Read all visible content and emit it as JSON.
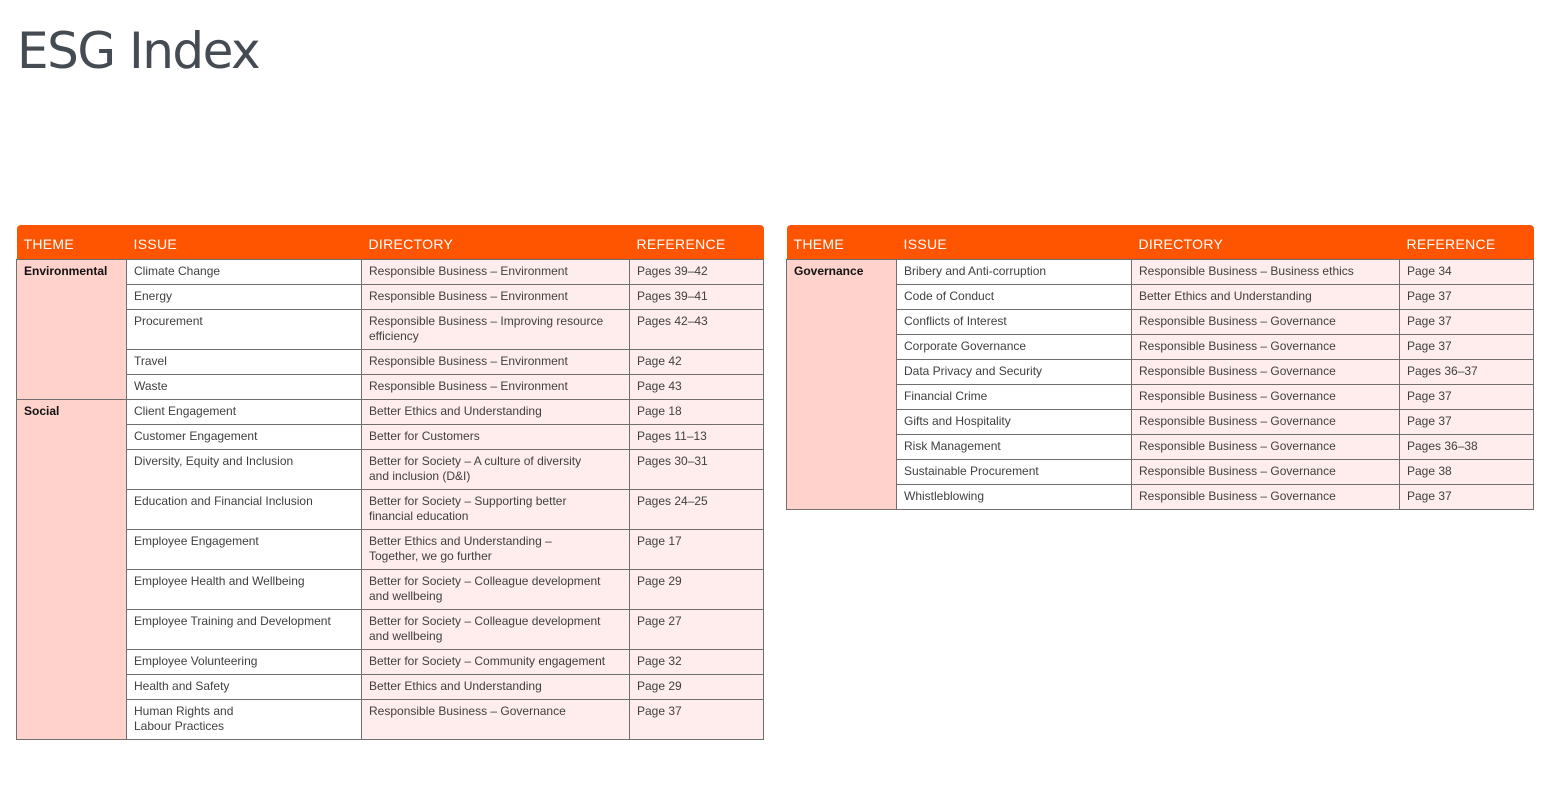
{
  "page": {
    "title": "ESG Index"
  },
  "headers": {
    "theme": "THEME",
    "issue": "ISSUE",
    "directory": "DIRECTORY",
    "reference": "REFERENCE"
  },
  "left_table": {
    "groups": [
      {
        "theme": "Environmental",
        "rows": [
          {
            "issue": "Climate Change",
            "directory": "Responsible Business – Environment",
            "reference": "Pages 39–42"
          },
          {
            "issue": "Energy",
            "directory": "Responsible Business – Environment",
            "reference": "Pages 39–41"
          },
          {
            "issue": "Procurement",
            "directory": "Responsible Business – Improving resource\nefficiency",
            "reference": "Pages 42–43"
          },
          {
            "issue": "Travel",
            "directory": "Responsible Business – Environment",
            "reference": "Page 42"
          },
          {
            "issue": "Waste",
            "directory": "Responsible Business – Environment",
            "reference": "Page 43"
          }
        ]
      },
      {
        "theme": "Social",
        "rows": [
          {
            "issue": "Client Engagement",
            "directory": "Better Ethics and Understanding",
            "reference": "Page 18"
          },
          {
            "issue": "Customer Engagement",
            "directory": "Better for Customers",
            "reference": "Pages 11–13"
          },
          {
            "issue": "Diversity, Equity and Inclusion",
            "directory": "Better for Society – A culture of diversity\nand inclusion (D&I)",
            "reference": "Pages 30–31"
          },
          {
            "issue": "Education and Financial Inclusion",
            "directory": "Better for Society – Supporting better\nfinancial education",
            "reference": "Pages 24–25"
          },
          {
            "issue": "Employee Engagement",
            "directory": "Better Ethics and Understanding –\nTogether, we go further",
            "reference": "Page 17"
          },
          {
            "issue": "Employee Health and Wellbeing",
            "directory": "Better for Society – Colleague development\nand wellbeing",
            "reference": "Page 29"
          },
          {
            "issue": "Employee Training and Development",
            "directory": "Better for Society – Colleague development\nand wellbeing",
            "reference": "Page 27"
          },
          {
            "issue": "Employee Volunteering",
            "directory": "Better for Society – Community engagement",
            "reference": "Page 32"
          },
          {
            "issue": "Health and Safety",
            "directory": "Better Ethics and Understanding",
            "reference": "Page 29"
          },
          {
            "issue": "Human Rights and\nLabour Practices",
            "directory": "Responsible Business – Governance",
            "reference": "Page 37"
          }
        ]
      }
    ]
  },
  "right_table": {
    "groups": [
      {
        "theme": "Governance",
        "rows": [
          {
            "issue": "Bribery and Anti-corruption",
            "directory": "Responsible Business – Business ethics",
            "reference": "Page 34"
          },
          {
            "issue": "Code of Conduct",
            "directory": "Better Ethics and Understanding",
            "reference": "Page 37"
          },
          {
            "issue": "Conflicts of Interest",
            "directory": "Responsible Business – Governance",
            "reference": "Page 37"
          },
          {
            "issue": "Corporate Governance",
            "directory": "Responsible Business – Governance",
            "reference": "Page 37"
          },
          {
            "issue": "Data Privacy and Security",
            "directory": "Responsible Business – Governance",
            "reference": "Pages 36–37"
          },
          {
            "issue": "Financial Crime",
            "directory": "Responsible Business – Governance",
            "reference": "Page 37"
          },
          {
            "issue": "Gifts and Hospitality",
            "directory": "Responsible Business – Governance",
            "reference": "Page 37"
          },
          {
            "issue": "Risk Management",
            "directory": "Responsible Business – Governance",
            "reference": "Pages 36–38"
          },
          {
            "issue": "Sustainable Procurement",
            "directory": "Responsible Business – Governance",
            "reference": "Page 38"
          },
          {
            "issue": "Whistleblowing",
            "directory": "Responsible Business – Governance",
            "reference": "Page 37"
          }
        ]
      }
    ]
  }
}
